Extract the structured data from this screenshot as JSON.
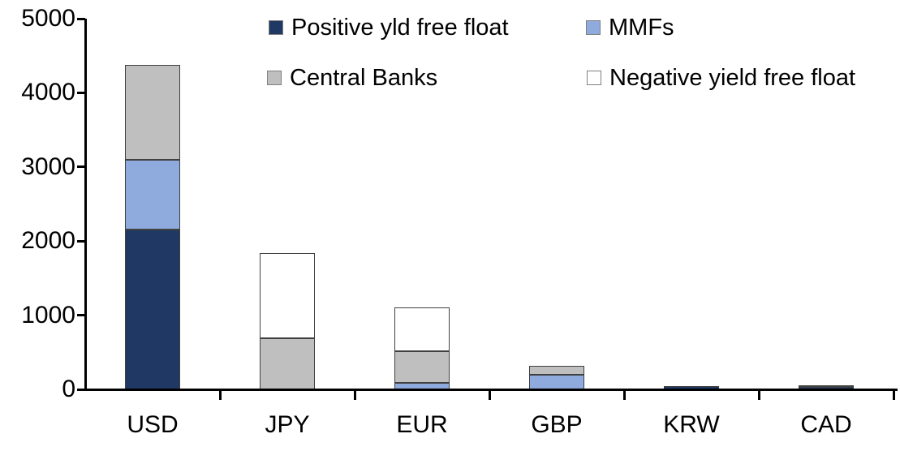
{
  "chart_data": {
    "type": "bar",
    "stacked": true,
    "title": "",
    "xlabel": "",
    "ylabel": "",
    "grid": false,
    "legend_position": "top",
    "categories": [
      "USD",
      "JPY",
      "EUR",
      "GBP",
      "KRW",
      "CAD"
    ],
    "series": [
      {
        "name": "Positive yld free float",
        "color": "#1F3864",
        "values": [
          2150,
          0,
          0,
          0,
          40,
          35
        ]
      },
      {
        "name": "MMFs",
        "color": "#8FAADC",
        "values": [
          950,
          0,
          90,
          200,
          0,
          0
        ]
      },
      {
        "name": "Central Banks",
        "color": "#BFBFBF",
        "values": [
          1280,
          690,
          425,
          120,
          0,
          20
        ]
      },
      {
        "name": "Negative yield free float",
        "color": "#FFFFFF",
        "values": [
          0,
          1150,
          590,
          0,
          0,
          0
        ]
      }
    ],
    "ylim": [
      0,
      5000
    ],
    "yticks": [
      "0",
      "1000",
      "2000",
      "3000",
      "4000",
      "5000"
    ]
  },
  "colors": {
    "axis": "#000000",
    "segment_border": "#404040"
  }
}
